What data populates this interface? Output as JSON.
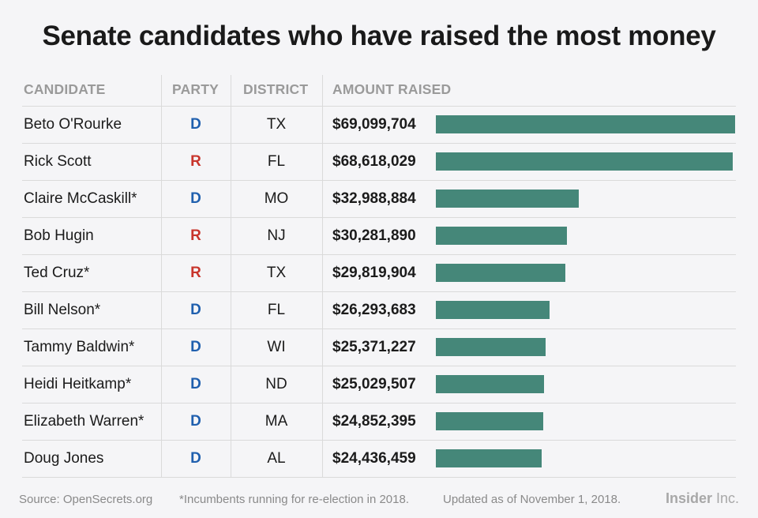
{
  "title": "Senate candidates who have raised the most money",
  "headers": {
    "candidate": "CANDIDATE",
    "party": "PARTY",
    "district": "DISTRICT",
    "amount": "AMOUNT RAISED"
  },
  "colors": {
    "D": "#1f5fae",
    "R": "#c8352c",
    "bar": "#458779"
  },
  "chart_data": {
    "type": "bar",
    "orientation": "horizontal",
    "title": "Senate candidates who have raised the most money",
    "xlabel": "AMOUNT RAISED",
    "ylabel": "CANDIDATE",
    "xlim": [
      0,
      69099704
    ],
    "rows": [
      {
        "candidate": "Beto O'Rourke",
        "party": "D",
        "district": "TX",
        "amount_label": "$69,099,704",
        "value": 69099704
      },
      {
        "candidate": "Rick Scott",
        "party": "R",
        "district": "FL",
        "amount_label": "$68,618,029",
        "value": 68618029
      },
      {
        "candidate": "Claire McCaskill*",
        "party": "D",
        "district": "MO",
        "amount_label": "$32,988,884",
        "value": 32988884
      },
      {
        "candidate": "Bob Hugin",
        "party": "R",
        "district": "NJ",
        "amount_label": "$30,281,890",
        "value": 30281890
      },
      {
        "candidate": "Ted Cruz*",
        "party": "R",
        "district": "TX",
        "amount_label": "$29,819,904",
        "value": 29819904
      },
      {
        "candidate": "Bill Nelson*",
        "party": "D",
        "district": "FL",
        "amount_label": "$26,293,683",
        "value": 26293683
      },
      {
        "candidate": "Tammy Baldwin*",
        "party": "D",
        "district": "WI",
        "amount_label": "$25,371,227",
        "value": 25371227
      },
      {
        "candidate": "Heidi Heitkamp*",
        "party": "D",
        "district": "ND",
        "amount_label": "$25,029,507",
        "value": 25029507
      },
      {
        "candidate": "Elizabeth Warren*",
        "party": "D",
        "district": "MA",
        "amount_label": "$24,852,395",
        "value": 24852395
      },
      {
        "candidate": "Doug Jones",
        "party": "D",
        "district": "AL",
        "amount_label": "$24,436,459",
        "value": 24436459
      }
    ]
  },
  "footer": {
    "source": "Source: OpenSecrets.org",
    "note": "*Incumbents running for re-election in 2018.",
    "updated": "Updated as of November 1, 2018.",
    "brand_bold": "Insider",
    "brand_light": " Inc."
  }
}
